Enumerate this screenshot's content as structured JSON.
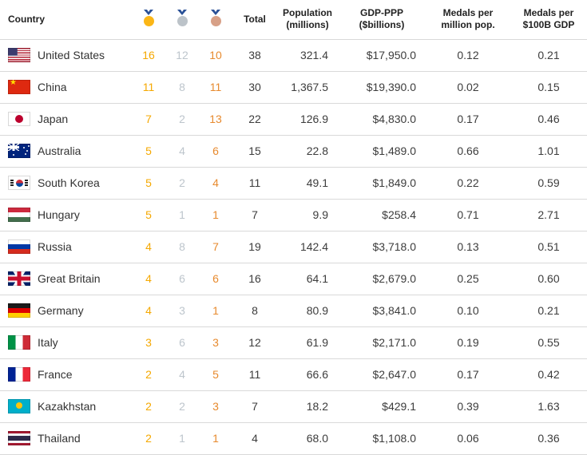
{
  "chart_data": {
    "type": "table",
    "header": {
      "country": "Country",
      "total": "Total",
      "population": "Population (millions)",
      "gdp": "GDP-PPP ($billions)",
      "per_million": "Medals per million pop.",
      "per_gdp": "Medals per $100B GDP"
    },
    "medal_icons": [
      "gold-medal-icon",
      "silver-medal-icon",
      "bronze-medal-icon"
    ],
    "rows": [
      {
        "country": "United States",
        "flag": "us",
        "gold": "16",
        "silver": "12",
        "bronze": "10",
        "total": "38",
        "population": "321.4",
        "gdp": "$17,950.0",
        "per_million": "0.12",
        "per_gdp": "0.21"
      },
      {
        "country": "China",
        "flag": "cn",
        "gold": "11",
        "silver": "8",
        "bronze": "11",
        "total": "30",
        "population": "1,367.5",
        "gdp": "$19,390.0",
        "per_million": "0.02",
        "per_gdp": "0.15"
      },
      {
        "country": "Japan",
        "flag": "jp",
        "gold": "7",
        "silver": "2",
        "bronze": "13",
        "total": "22",
        "population": "126.9",
        "gdp": "$4,830.0",
        "per_million": "0.17",
        "per_gdp": "0.46"
      },
      {
        "country": "Australia",
        "flag": "au",
        "gold": "5",
        "silver": "4",
        "bronze": "6",
        "total": "15",
        "population": "22.8",
        "gdp": "$1,489.0",
        "per_million": "0.66",
        "per_gdp": "1.01"
      },
      {
        "country": "South Korea",
        "flag": "kr",
        "gold": "5",
        "silver": "2",
        "bronze": "4",
        "total": "11",
        "population": "49.1",
        "gdp": "$1,849.0",
        "per_million": "0.22",
        "per_gdp": "0.59"
      },
      {
        "country": "Hungary",
        "flag": "hu",
        "gold": "5",
        "silver": "1",
        "bronze": "1",
        "total": "7",
        "population": "9.9",
        "gdp": "$258.4",
        "per_million": "0.71",
        "per_gdp": "2.71"
      },
      {
        "country": "Russia",
        "flag": "ru",
        "gold": "4",
        "silver": "8",
        "bronze": "7",
        "total": "19",
        "population": "142.4",
        "gdp": "$3,718.0",
        "per_million": "0.13",
        "per_gdp": "0.51"
      },
      {
        "country": "Great Britain",
        "flag": "gb",
        "gold": "4",
        "silver": "6",
        "bronze": "6",
        "total": "16",
        "population": "64.1",
        "gdp": "$2,679.0",
        "per_million": "0.25",
        "per_gdp": "0.60"
      },
      {
        "country": "Germany",
        "flag": "de",
        "gold": "4",
        "silver": "3",
        "bronze": "1",
        "total": "8",
        "population": "80.9",
        "gdp": "$3,841.0",
        "per_million": "0.10",
        "per_gdp": "0.21"
      },
      {
        "country": "Italy",
        "flag": "it",
        "gold": "3",
        "silver": "6",
        "bronze": "3",
        "total": "12",
        "population": "61.9",
        "gdp": "$2,171.0",
        "per_million": "0.19",
        "per_gdp": "0.55"
      },
      {
        "country": "France",
        "flag": "fr",
        "gold": "2",
        "silver": "4",
        "bronze": "5",
        "total": "11",
        "population": "66.6",
        "gdp": "$2,647.0",
        "per_million": "0.17",
        "per_gdp": "0.42"
      },
      {
        "country": "Kazakhstan",
        "flag": "kz",
        "gold": "2",
        "silver": "2",
        "bronze": "3",
        "total": "7",
        "population": "18.2",
        "gdp": "$429.1",
        "per_million": "0.39",
        "per_gdp": "1.63"
      },
      {
        "country": "Thailand",
        "flag": "th",
        "gold": "2",
        "silver": "1",
        "bronze": "1",
        "total": "4",
        "population": "68.0",
        "gdp": "$1,108.0",
        "per_million": "0.06",
        "per_gdp": "0.36"
      }
    ]
  },
  "colors": {
    "gold_text": "#f5a800",
    "silver_text": "#bdc5cc",
    "bronze_text": "#e78a2e",
    "gold_medal": "#fbb616",
    "silver_medal": "#bcc3c9",
    "bronze_medal": "#d7a087",
    "ribbon_blue": "#2a5197",
    "row_border": "#d9d9d9",
    "text_dark": "#3c3c3c"
  }
}
